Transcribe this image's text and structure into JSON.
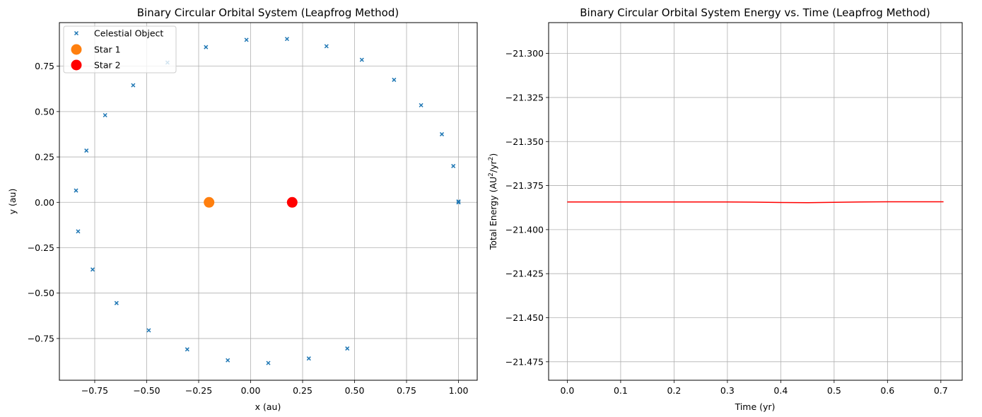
{
  "chart_data": [
    {
      "type": "scatter",
      "title": "Binary Circular Orbital System (Leapfrog Method)",
      "xlabel": "x (au)",
      "ylabel": "y (au)",
      "xlim": [
        -0.92,
        1.09
      ],
      "ylim": [
        -0.98,
        0.99
      ],
      "xticks": [
        -0.75,
        -0.5,
        -0.25,
        0.0,
        0.25,
        0.5,
        0.75,
        1.0
      ],
      "xtick_labels": [
        "−0.75",
        "−0.50",
        "−0.25",
        "0.00",
        "0.25",
        "0.50",
        "0.75",
        "1.00"
      ],
      "yticks": [
        -0.75,
        -0.5,
        -0.25,
        0.0,
        0.25,
        0.5,
        0.75
      ],
      "ytick_labels": [
        "−0.75",
        "−0.50",
        "−0.25",
        "0.00",
        "0.25",
        "0.50",
        "0.75"
      ],
      "grid": true,
      "legend_position": "upper-left",
      "series": [
        {
          "name": "Celestial Object",
          "marker": "x",
          "color": "#1f77b4",
          "points": [
            [
              1.0,
              0.0
            ],
            [
              1.0,
              0.005
            ],
            [
              0.975,
              0.2
            ],
            [
              0.92,
              0.375
            ],
            [
              0.82,
              0.535
            ],
            [
              0.69,
              0.675
            ],
            [
              0.535,
              0.785
            ],
            [
              0.365,
              0.86
            ],
            [
              0.175,
              0.9
            ],
            [
              -0.02,
              0.895
            ],
            [
              -0.215,
              0.855
            ],
            [
              -0.4,
              0.77
            ],
            [
              -0.565,
              0.645
            ],
            [
              -0.7,
              0.48
            ],
            [
              -0.79,
              0.285
            ],
            [
              -0.84,
              0.065
            ],
            [
              -0.83,
              -0.16
            ],
            [
              -0.76,
              -0.37
            ],
            [
              -0.645,
              -0.555
            ],
            [
              -0.49,
              -0.705
            ],
            [
              -0.305,
              -0.81
            ],
            [
              -0.11,
              -0.87
            ],
            [
              0.085,
              -0.885
            ],
            [
              0.28,
              -0.86
            ],
            [
              0.465,
              -0.805
            ]
          ]
        },
        {
          "name": "Star 1",
          "marker": "o",
          "color": "#ff7f0e",
          "points": [
            [
              -0.2,
              0.0
            ]
          ]
        },
        {
          "name": "Star 2",
          "marker": "o",
          "color": "#ff0000",
          "points": [
            [
              0.2,
              0.0
            ]
          ]
        }
      ]
    },
    {
      "type": "line",
      "title": "Binary Circular Orbital System Energy vs. Time (Leapfrog Method)",
      "xlabel": "Time (yr)",
      "ylabel_parts": [
        "Total Energy (AU",
        "2",
        "/yr",
        "2",
        ")"
      ],
      "xlim": [
        -0.035,
        0.74
      ],
      "ylim": [
        -21.4855,
        -21.2825
      ],
      "xticks": [
        0.0,
        0.1,
        0.2,
        0.3,
        0.4,
        0.5,
        0.6,
        0.7
      ],
      "xtick_labels": [
        "0.0",
        "0.1",
        "0.2",
        "0.3",
        "0.4",
        "0.5",
        "0.6",
        "0.7"
      ],
      "yticks": [
        -21.3,
        -21.325,
        -21.35,
        -21.375,
        -21.4,
        -21.425,
        -21.45,
        -21.475
      ],
      "ytick_labels": [
        "−21.300",
        "−21.325",
        "−21.350",
        "−21.375",
        "−21.400",
        "−21.425",
        "−21.450",
        "−21.475"
      ],
      "grid": true,
      "series": [
        {
          "color": "#ff0000",
          "x": [
            0.0,
            0.1,
            0.2,
            0.3,
            0.35,
            0.4,
            0.45,
            0.5,
            0.55,
            0.6,
            0.65,
            0.705
          ],
          "y": [
            -21.3843,
            -21.3843,
            -21.3843,
            -21.3843,
            -21.3844,
            -21.3846,
            -21.3847,
            -21.3845,
            -21.3843,
            -21.3842,
            -21.3842,
            -21.3842
          ]
        }
      ]
    }
  ]
}
